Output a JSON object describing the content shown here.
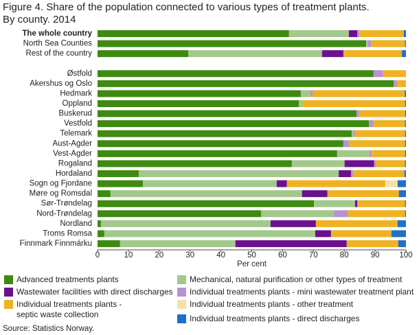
{
  "chart_data": {
    "type": "stacked-bar-horizontal",
    "title": "Figure 4. Share of the population connected to various types of treatment plants.\nBy county. 2014",
    "x_label": "Per cent",
    "source": "Source: Statistics Norway.",
    "categories": [
      "The whole country",
      "North Sea Counties",
      "Rest of the country",
      null,
      "Østfold",
      "Akershus og Oslo",
      "Hedmark",
      "Oppland",
      "Buskerud",
      "Vestfold",
      "Telemark",
      "Aust-Agder",
      "Vest-Agder",
      "Rogaland",
      "Hordaland",
      "Sogn og Fjordane",
      "Møre og Romsdal",
      "Sør-Trøndelag",
      "Nord-Trøndelag",
      "Nordland",
      "Troms Romsa",
      "Finnmark Finnmárku"
    ],
    "xlim": [
      0,
      100
    ],
    "xticks": [
      0,
      10,
      20,
      30,
      40,
      50,
      60,
      70,
      80,
      90,
      100
    ],
    "series": [
      {
        "name": "Advanced treatments plants",
        "color": "#3f8a12",
        "values": [
          62.1,
          87.1,
          29.4,
          null,
          89.5,
          96.0,
          65.9,
          65.3,
          84.0,
          88.0,
          82.4,
          79.7,
          77.7,
          63.0,
          13.4,
          14.7,
          4.2,
          70.2,
          53.0,
          1.1,
          2.2,
          7.3
        ]
      },
      {
        "name": "Mechanical, natural purification or other types of treatment",
        "color": "#a3c88c",
        "values": [
          19.4,
          0.5,
          43.4,
          null,
          0,
          0,
          3.1,
          1.2,
          0,
          0,
          0.5,
          0,
          10.5,
          17.1,
          64.8,
          43.4,
          62.1,
          13.3,
          23.6,
          55.0,
          68.4,
          37.4
        ]
      },
      {
        "name": "Wastewater facilities with direct discharges",
        "color": "#6b118f",
        "values": [
          2.7,
          0,
          6.9,
          null,
          0,
          0,
          0,
          0,
          0,
          0,
          0,
          0,
          0,
          9.6,
          4.0,
          3.3,
          8.2,
          0.7,
          0,
          14.7,
          5.1,
          36.1
        ]
      },
      {
        "name": "Individual treatments plants - mini wastewater treatment plant",
        "color": "#b793d0",
        "values": [
          0.7,
          1.2,
          0.3,
          null,
          3.1,
          1.0,
          0.7,
          0,
          0.9,
          1.5,
          0.5,
          1.8,
          0.7,
          0.5,
          0.8,
          0,
          0,
          0.3,
          4.5,
          0,
          0,
          0
        ]
      },
      {
        "name": "Individual treatments plants -\nseptic waste collection",
        "color": "#efb223",
        "values": [
          14.4,
          10.9,
          18.7,
          null,
          7.4,
          3.0,
          29.9,
          33.2,
          14.8,
          10.2,
          16.3,
          18.2,
          10.8,
          9.5,
          16.5,
          31.9,
          23.2,
          15.2,
          18.6,
          26.5,
          19.6,
          16.7
        ]
      },
      {
        "name": "Individual treatments plants - other treatment",
        "color": "#f6e0a9",
        "values": [
          0,
          0,
          0,
          null,
          0,
          0,
          0,
          0,
          0,
          0,
          0,
          0,
          0,
          0,
          0,
          4.0,
          0,
          0,
          0,
          0,
          0,
          0
        ]
      },
      {
        "name": "Individual treatments plants - direct discharges",
        "color": "#1f70c8",
        "values": [
          0.7,
          0.3,
          1.3,
          null,
          0,
          0,
          0.4,
          0.3,
          0.3,
          0.3,
          0.3,
          0.3,
          0.3,
          0.3,
          0.5,
          2.7,
          2.3,
          0.3,
          0.3,
          2.7,
          4.7,
          2.5
        ]
      }
    ]
  }
}
